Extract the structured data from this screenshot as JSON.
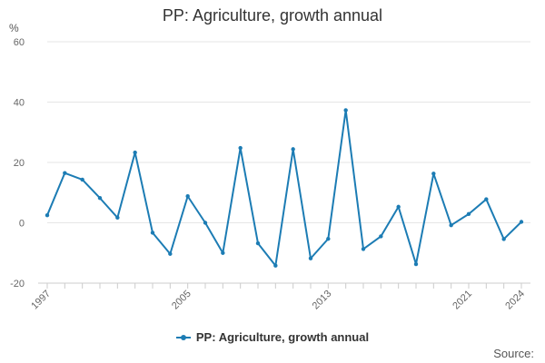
{
  "title": "PP: Agriculture, growth annual",
  "y_unit": "%",
  "legend": {
    "label": "PP: Agriculture, growth annual"
  },
  "source": "Source:",
  "colors": {
    "series": "#1c7cb4",
    "grid": "#e6e6e6",
    "axis": "#cccccc"
  },
  "chart_data": {
    "type": "line",
    "title": "PP: Agriculture, growth annual",
    "xlabel": "",
    "ylabel": "%",
    "ylim": [
      -20,
      60
    ],
    "xlim": [
      1997,
      2024
    ],
    "yticks": [
      -20,
      0,
      20,
      40,
      60
    ],
    "xtick_labels": [
      1997,
      2005,
      2013,
      2021,
      2024
    ],
    "grid": true,
    "legend_position": "bottom",
    "x": [
      1997,
      1998,
      1999,
      2000,
      2001,
      2002,
      2003,
      2004,
      2005,
      2006,
      2007,
      2008,
      2009,
      2010,
      2011,
      2012,
      2013,
      2014,
      2015,
      2016,
      2017,
      2018,
      2019,
      2020,
      2021,
      2022,
      2023,
      2024
    ],
    "series": [
      {
        "name": "PP: Agriculture, growth annual",
        "values": [
          2.5,
          16.5,
          14.3,
          8.2,
          1.7,
          23.3,
          -3.3,
          -10.3,
          8.8,
          0.0,
          -10.0,
          24.8,
          -6.8,
          -14.2,
          24.4,
          -11.8,
          -5.3,
          37.3,
          -8.7,
          -4.5,
          5.3,
          -13.7,
          16.3,
          -0.8,
          2.9,
          7.8,
          -5.4,
          0.3
        ]
      }
    ]
  }
}
